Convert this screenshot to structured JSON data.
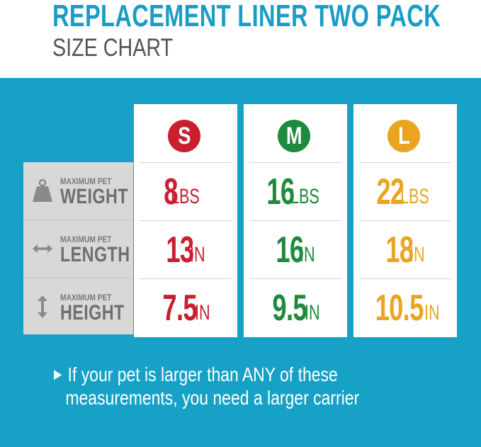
{
  "header": {
    "title": "REPLACEMENT LINER TWO PACK",
    "subtitle": "SIZE CHART"
  },
  "rows": [
    {
      "small": "MAXIMUM PET",
      "big": "WEIGHT",
      "icon": "weight-icon"
    },
    {
      "small": "MAXIMUM PET",
      "big": "LENGTH",
      "icon": "horizontal-arrow-icon"
    },
    {
      "small": "MAXIMUM PET",
      "big": "HEIGHT",
      "icon": "vertical-arrow-icon"
    }
  ],
  "sizes": [
    {
      "label": "S",
      "color": "#c8202f",
      "weight": {
        "num": "8",
        "unit": "LBS"
      },
      "length": {
        "num": "13",
        "unit": "IN"
      },
      "height": {
        "num": "7.5",
        "unit": "IN"
      }
    },
    {
      "label": "M",
      "color": "#1f8a3c",
      "weight": {
        "num": "16",
        "unit": "LBS"
      },
      "length": {
        "num": "16",
        "unit": "IN"
      },
      "height": {
        "num": "9.5",
        "unit": "IN"
      }
    },
    {
      "label": "L",
      "color": "#e9a521",
      "weight": {
        "num": "22",
        "unit": "LBS"
      },
      "length": {
        "num": "18",
        "unit": "IN"
      },
      "height": {
        "num": "10.5",
        "unit": "IN"
      }
    }
  ],
  "note": {
    "line1": "If your pet is larger than ANY of these",
    "line2": "measurements, you need a larger carrier"
  },
  "colors": {
    "title": "#1a9dc4",
    "panel": "#17a1c6",
    "label_background": "#d8d8d8",
    "icon": "#8a8a8a"
  }
}
